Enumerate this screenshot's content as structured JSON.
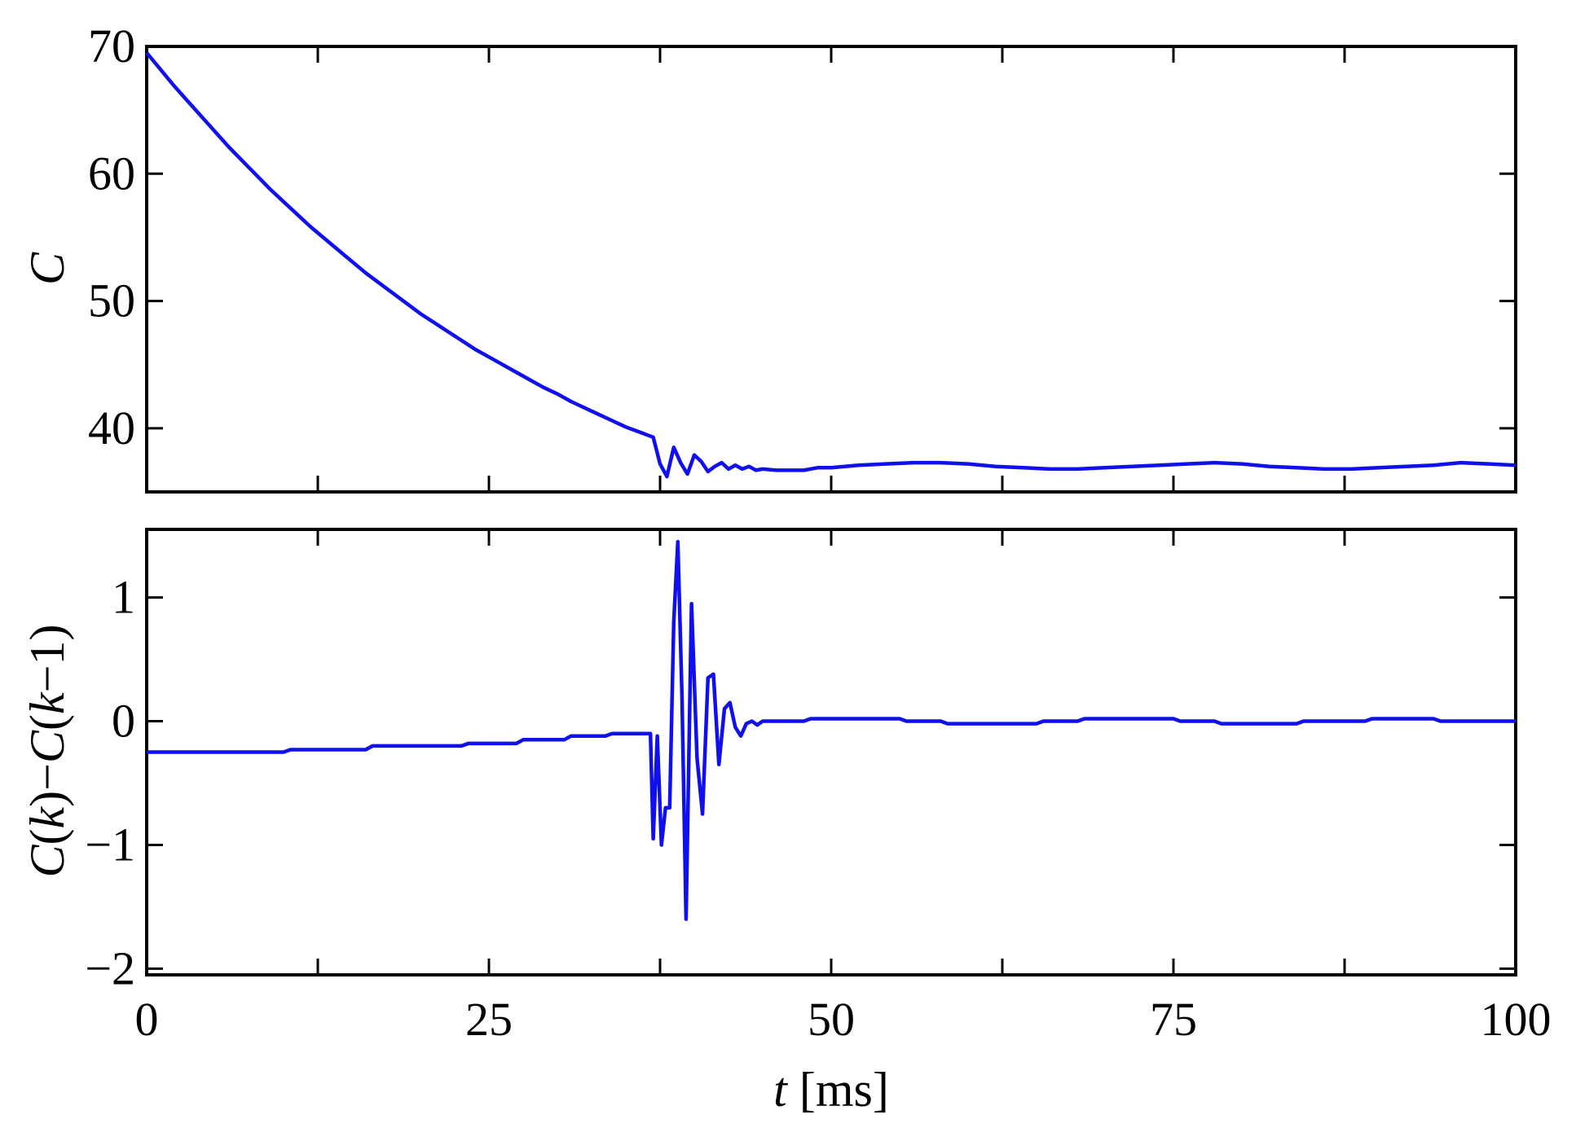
{
  "chart_data": [
    {
      "type": "line",
      "panel": "top",
      "ylabel": "C",
      "xlim": [
        0,
        100
      ],
      "ylim": [
        35,
        70
      ],
      "yticks": [
        40,
        50,
        60,
        70
      ],
      "xticks": [
        0,
        25,
        50,
        75,
        100
      ],
      "xtick_labels_shown": false,
      "grid": false,
      "series": [
        {
          "color": "#1010ee",
          "x": [
            0,
            1,
            2,
            3,
            4,
            5,
            6,
            7,
            8,
            9,
            10,
            11,
            12,
            13,
            14,
            15,
            16,
            17,
            18,
            19,
            20,
            21,
            22,
            23,
            24,
            25,
            26,
            27,
            28,
            29,
            30,
            31,
            32,
            33,
            34,
            35,
            36,
            37,
            37.5,
            38,
            38.5,
            39,
            39.5,
            40,
            40.5,
            41,
            41.5,
            42,
            42.5,
            43,
            43.5,
            44,
            44.5,
            45,
            46,
            47,
            48,
            49,
            50,
            52,
            54,
            56,
            58,
            60,
            62,
            64,
            66,
            68,
            70,
            72,
            74,
            76,
            78,
            80,
            82,
            84,
            86,
            88,
            90,
            92,
            94,
            96,
            98,
            100
          ],
          "y": [
            69.5,
            68.2,
            66.9,
            65.7,
            64.5,
            63.3,
            62.1,
            61.0,
            59.9,
            58.8,
            57.8,
            56.8,
            55.8,
            54.9,
            54.0,
            53.1,
            52.2,
            51.4,
            50.6,
            49.8,
            49.0,
            48.3,
            47.6,
            46.9,
            46.2,
            45.6,
            45.0,
            44.4,
            43.8,
            43.2,
            42.7,
            42.1,
            41.6,
            41.1,
            40.6,
            40.1,
            39.7,
            39.3,
            37.2,
            36.2,
            38.5,
            37.3,
            36.4,
            37.9,
            37.4,
            36.6,
            37.0,
            37.3,
            36.8,
            37.1,
            36.8,
            37.0,
            36.7,
            36.8,
            36.7,
            36.7,
            36.7,
            36.9,
            36.9,
            37.1,
            37.2,
            37.3,
            37.3,
            37.2,
            37.0,
            36.9,
            36.8,
            36.8,
            36.9,
            37.0,
            37.1,
            37.2,
            37.3,
            37.2,
            37.0,
            36.9,
            36.8,
            36.8,
            36.9,
            37.0,
            37.1,
            37.3,
            37.2,
            37.1
          ]
        }
      ]
    },
    {
      "type": "line",
      "panel": "bottom",
      "ylabel": "C(k)−C(k−1)",
      "xlabel": "t [ms]",
      "xlim": [
        0,
        100
      ],
      "ylim": [
        -2.05,
        1.55
      ],
      "yticks": [
        -2,
        -1,
        0,
        1
      ],
      "ytick_labels": [
        "−2",
        "−1",
        "0",
        "1"
      ],
      "xticks": [
        0,
        25,
        50,
        75,
        100
      ],
      "xtick_labels": [
        "0",
        "25",
        "50",
        "75",
        "100"
      ],
      "grid": false,
      "series": [
        {
          "color": "#1010ee",
          "x": [
            0,
            10,
            10.5,
            16,
            16.5,
            23,
            23.5,
            27,
            27.5,
            30.5,
            31,
            33.5,
            34,
            36.8,
            37.0,
            37.3,
            37.6,
            37.9,
            38.2,
            38.5,
            38.8,
            39.1,
            39.4,
            39.8,
            40.2,
            40.6,
            41.0,
            41.4,
            41.8,
            42.2,
            42.6,
            43.0,
            43.4,
            43.8,
            44.2,
            44.6,
            45,
            46,
            48,
            48.5,
            55,
            55.5,
            58,
            58.5,
            65,
            65.5,
            68,
            68.5,
            75,
            75.5,
            78,
            78.5,
            84,
            84.5,
            89,
            89.5,
            94,
            94.5,
            100
          ],
          "y": [
            -0.25,
            -0.25,
            -0.23,
            -0.23,
            -0.2,
            -0.2,
            -0.18,
            -0.18,
            -0.15,
            -0.15,
            -0.12,
            -0.12,
            -0.1,
            -0.1,
            -0.95,
            -0.12,
            -1.0,
            -0.7,
            -0.7,
            0.8,
            1.45,
            0.2,
            -1.6,
            0.95,
            -0.3,
            -0.75,
            0.35,
            0.38,
            -0.35,
            0.1,
            0.15,
            -0.05,
            -0.12,
            -0.02,
            0.0,
            -0.03,
            0.0,
            0.0,
            0.0,
            0.02,
            0.02,
            0.0,
            0.0,
            -0.02,
            -0.02,
            0.0,
            0.0,
            0.02,
            0.02,
            0.0,
            0.0,
            -0.02,
            -0.02,
            0.0,
            0.0,
            0.02,
            0.02,
            0.0,
            0.0
          ]
        }
      ]
    }
  ]
}
